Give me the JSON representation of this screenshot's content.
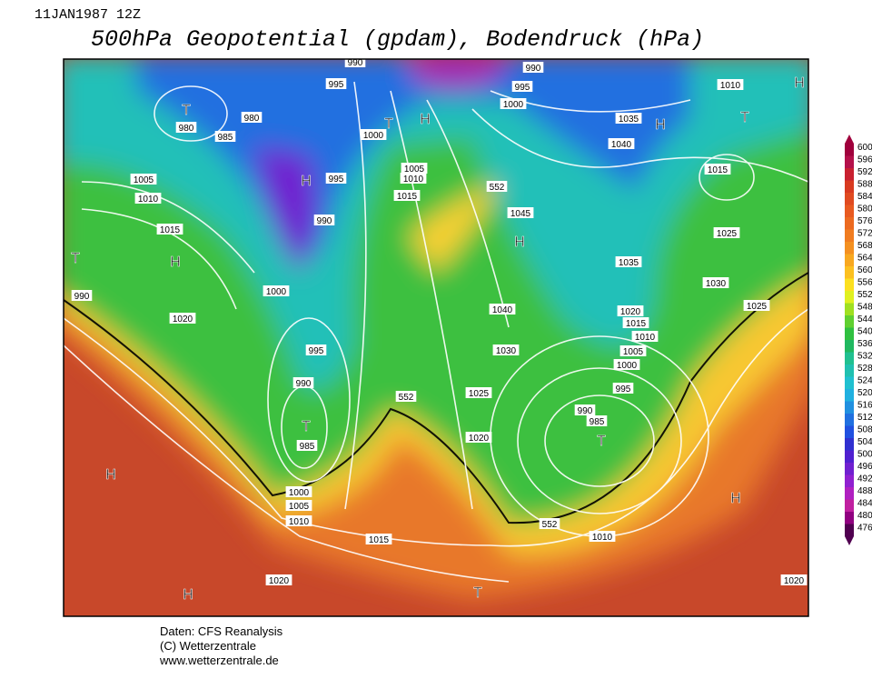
{
  "header": {
    "date": "11JAN1987 12Z",
    "title": "500hPa Geopotential (gpdam), Bodendruck (hPa)"
  },
  "map": {
    "labels": [
      990,
      990,
      995,
      1000,
      995,
      980,
      985,
      "T",
      980,
      "T",
      "H",
      1000,
      1035,
      "H",
      1040,
      1010,
      "T",
      "H",
      1005,
      1010,
      1015,
      "H",
      995,
      1005,
      1010,
      1015,
      552,
      1045,
      "H",
      990,
      1015,
      1025,
      "T",
      "H",
      1035,
      1030,
      990,
      1000,
      1020,
      1040,
      1025,
      1020,
      1015,
      1010,
      1005,
      1000,
      995,
      990,
      985,
      "T",
      1030,
      1025,
      552,
      995,
      990,
      "T",
      985,
      1020,
      "H",
      1000,
      1005,
      1010,
      1015,
      552,
      1010,
      "H",
      1020,
      "H",
      "T",
      1020
    ]
  },
  "legend": {
    "ticks": [
      600,
      596,
      592,
      588,
      584,
      580,
      576,
      572,
      568,
      564,
      560,
      556,
      552,
      548,
      544,
      540,
      536,
      532,
      528,
      524,
      520,
      516,
      512,
      508,
      504,
      500,
      496,
      492,
      488,
      484,
      480,
      476
    ],
    "colors": [
      "#a0003c",
      "#b4104a",
      "#c82030",
      "#d83a20",
      "#e04a20",
      "#e85a20",
      "#ec6a20",
      "#f07c20",
      "#f49020",
      "#f8a820",
      "#fcc020",
      "#fce020",
      "#e0f020",
      "#a0e020",
      "#60d030",
      "#30c040",
      "#20b860",
      "#20c090",
      "#20c0b0",
      "#20c0d0",
      "#20b0e0",
      "#2090e0",
      "#2070e0",
      "#2050e0",
      "#3030d0",
      "#5020d0",
      "#7020d0",
      "#9020d0",
      "#b020c0",
      "#c020a0",
      "#900080",
      "#500050"
    ]
  },
  "footer": {
    "lines": [
      "Daten: CFS Reanalysis",
      "(C) Wetterzentrale",
      "www.wetterzentrale.de"
    ]
  }
}
